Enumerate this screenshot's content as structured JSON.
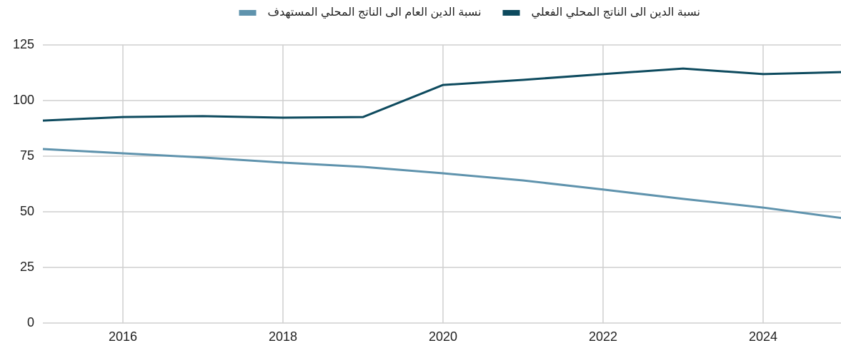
{
  "chart_data": {
    "type": "line",
    "x": [
      2015,
      2016,
      2017,
      2018,
      2019,
      2020,
      2021,
      2022,
      2023,
      2024,
      2025
    ],
    "series": [
      {
        "name": "نسبة الدين الى الناتج المحلي الفعلي",
        "color": "#0d4a5e",
        "values": [
          91,
          92.6,
          93,
          92.3,
          92.6,
          107,
          109.3,
          111.9,
          114.4,
          111.9,
          112.8
        ]
      },
      {
        "name": "نسبة الدين العام الى الناتج المحلي المستهدف",
        "color": "#5f93ad",
        "values": [
          78.2,
          76.3,
          74.4,
          72.1,
          70.2,
          67.3,
          64.1,
          60,
          55.8,
          51.9,
          47.1
        ]
      }
    ],
    "xlim": [
      2015,
      2025
    ],
    "xticks": [
      2016,
      2018,
      2020,
      2022,
      2024
    ],
    "ylim": [
      0,
      125
    ],
    "yticks": [
      0,
      25,
      50,
      75,
      100,
      125
    ],
    "grid": true,
    "legend": "top"
  }
}
